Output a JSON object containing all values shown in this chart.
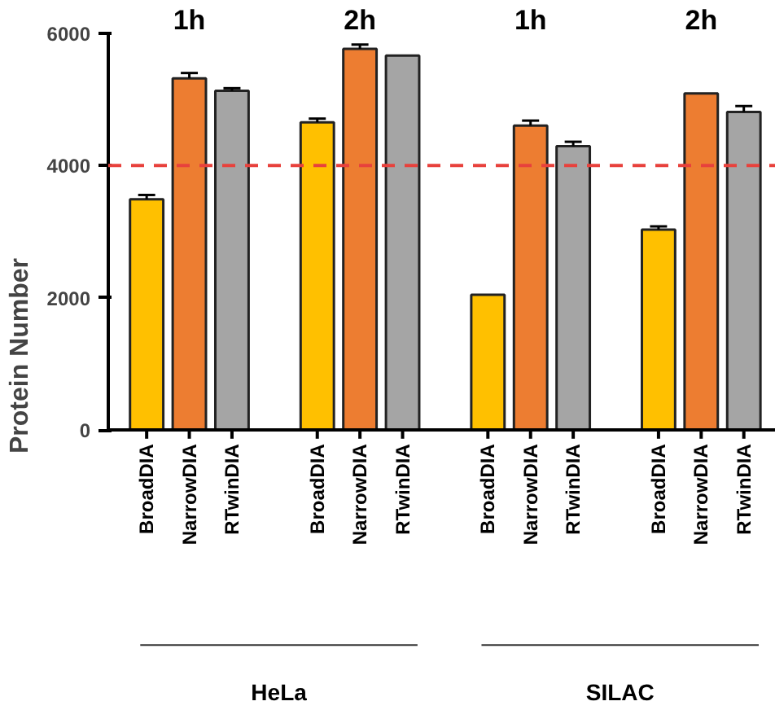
{
  "chart_data": {
    "type": "bar",
    "ylabel": "Protein Number",
    "categories": [
      "BroadDIA",
      "NarrowDIA",
      "RTwinDIA",
      "BroadDIA",
      "NarrowDIA",
      "RTwinDIA",
      "BroadDIA",
      "NarrowDIA",
      "RTwinDIA",
      "BroadDIA",
      "NarrowDIA",
      "RTwinDIA"
    ],
    "values": [
      3490,
      5320,
      5130,
      4655,
      5765,
      5665,
      2045,
      4605,
      4295,
      3030,
      5090,
      4810
    ],
    "colors": [
      "#ffc000",
      "#ed7d31",
      "#a5a5a5",
      "#ffc000",
      "#ed7d31",
      "#a5a5a5",
      "#ffc000",
      "#ed7d31",
      "#a5a5a5",
      "#ffc000",
      "#ed7d31",
      "#a5a5a5"
    ],
    "errors": [
      [
        3490,
        3555
      ],
      [
        5320,
        5400
      ],
      [
        5130,
        5170
      ],
      [
        4655,
        4710
      ],
      [
        5765,
        5830
      ],
      null,
      null,
      [
        4605,
        4680
      ],
      [
        4295,
        4360
      ],
      [
        3030,
        3080
      ],
      null,
      [
        4810,
        4900
      ]
    ],
    "ylim": [
      0,
      6000
    ],
    "yticks": [
      0,
      2000,
      4000,
      6000
    ],
    "grid": false,
    "ref_lines": [
      {
        "axis": "y",
        "value": 4000,
        "color": "#e8413c",
        "line_style": "dashed"
      }
    ],
    "annotations": [
      "1h",
      "2h",
      "1h",
      "2h",
      "HeLa",
      "SILAC"
    ]
  }
}
